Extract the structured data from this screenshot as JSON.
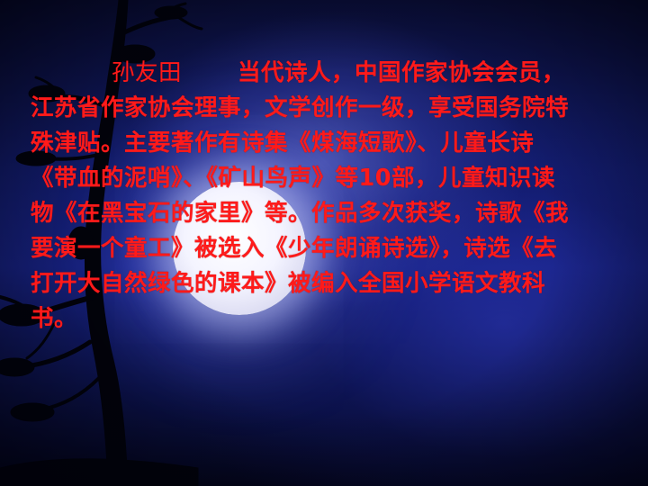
{
  "slide": {
    "author_name": "孙友田",
    "bio_text": "当代诗人，中国作家协会会员，江苏省作家协会理事，文学创作一级，享受国务院特殊津贴。主要著作有诗集《煤海短歌》、儿童长诗《带血的泥哨》、《矿山鸟声》等10部，儿童知识读物《在黑宝石的家里》等。作品多次获奖，诗歌《我要演一个童工》被选入《少年朗诵诗选》，诗选《去打开大自然绿色的课本》被编入全国小学语文教科书。",
    "text_color": "#ff1a1a",
    "background_color": "#15207a"
  }
}
